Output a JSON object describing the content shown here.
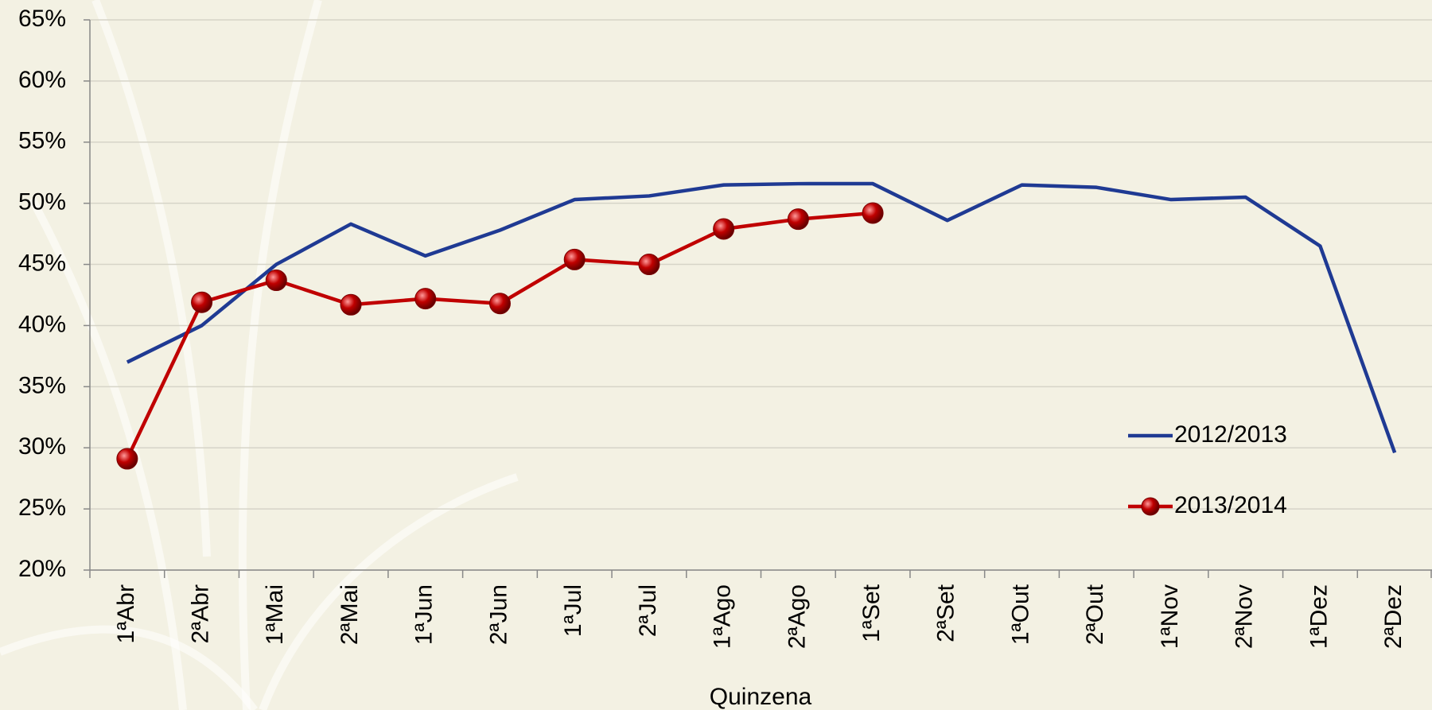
{
  "chart_data": {
    "type": "line",
    "x_label": "Quinzena",
    "categories": [
      "1ªAbr",
      "2ªAbr",
      "1ªMai",
      "2ªMai",
      "1ªJun",
      "2ªJun",
      "1ªJul",
      "2ªJul",
      "1ªAgo",
      "2ªAgo",
      "1ªSet",
      "2ªSet",
      "1ªOut",
      "2ªOut",
      "1ªNov",
      "2ªNov",
      "1ªDez",
      "2ªDez"
    ],
    "series": [
      {
        "name": "2012/2013",
        "color": "#1f3a93",
        "marker": false,
        "values": [
          37.0,
          40.0,
          45.0,
          48.3,
          45.7,
          47.8,
          50.3,
          50.6,
          51.5,
          51.6,
          51.6,
          48.6,
          51.5,
          51.3,
          50.3,
          50.5,
          46.5,
          29.6
        ]
      },
      {
        "name": "2013/2014",
        "color": "#c00000",
        "marker": true,
        "values": [
          29.1,
          41.9,
          43.7,
          41.7,
          42.2,
          41.8,
          45.4,
          45.0,
          47.9,
          48.7,
          49.2,
          null,
          null,
          null,
          null,
          null,
          null,
          null
        ]
      }
    ],
    "ylim": [
      20,
      65
    ],
    "yticks": [
      {
        "value": 20,
        "label": "20%"
      },
      {
        "value": 25,
        "label": "25%"
      },
      {
        "value": 30,
        "label": "30%"
      },
      {
        "value": 35,
        "label": "35%"
      },
      {
        "value": 40,
        "label": "40%"
      },
      {
        "value": 45,
        "label": "45%"
      },
      {
        "value": 50,
        "label": "50%"
      },
      {
        "value": 55,
        "label": "55%"
      },
      {
        "value": 60,
        "label": "60%"
      },
      {
        "value": 65,
        "label": "65%"
      }
    ],
    "grid": true,
    "legend": "right"
  }
}
